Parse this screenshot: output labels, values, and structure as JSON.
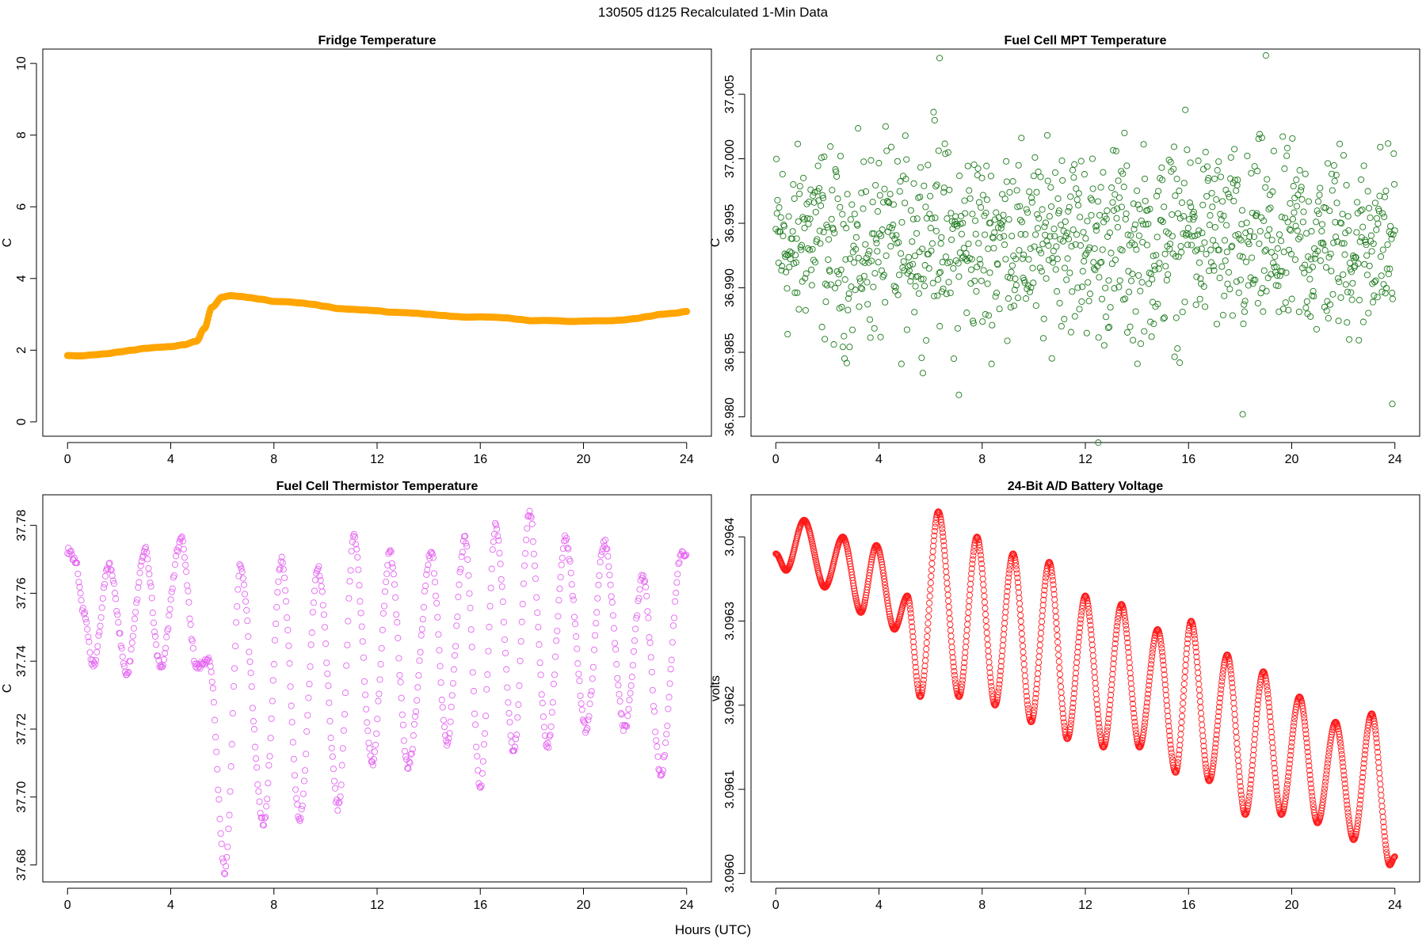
{
  "page": {
    "title": "130505   d125   Recalculated 1-Min Data",
    "xlabel": "Hours (UTC)"
  },
  "chart_data": [
    {
      "type": "line",
      "title": "Fridge Temperature",
      "xlabel": "Hours (UTC)",
      "ylabel": "C",
      "color": "#FFA500",
      "xlim": [
        -0.96,
        24.96
      ],
      "ylim": [
        -0.4,
        10.4
      ],
      "xticks": [
        0,
        4,
        8,
        12,
        16,
        20,
        24
      ],
      "yticks": [
        0,
        2,
        4,
        6,
        8,
        10
      ],
      "ytick_labels": [
        "0",
        "2",
        "4",
        "6",
        "8",
        "10"
      ],
      "series": [
        {
          "name": "Fridge Temperature",
          "x": [
            0,
            0.5,
            1,
            1.5,
            2,
            2.5,
            3,
            3.5,
            4,
            4.5,
            5,
            5.3,
            5.6,
            6,
            6.3,
            6.7,
            7,
            7.5,
            8,
            8.5,
            9,
            9.5,
            10,
            10.5,
            11,
            11.5,
            12,
            12.5,
            13,
            13.5,
            14,
            14.5,
            15,
            15.5,
            16,
            16.5,
            17,
            17.5,
            18,
            18.5,
            19,
            19.5,
            20,
            20.5,
            21,
            21.5,
            22,
            22.5,
            23,
            23.5,
            24
          ],
          "y": [
            1.85,
            1.84,
            1.87,
            1.9,
            1.95,
            2.0,
            2.05,
            2.08,
            2.1,
            2.15,
            2.25,
            2.6,
            3.2,
            3.48,
            3.52,
            3.5,
            3.47,
            3.42,
            3.36,
            3.35,
            3.32,
            3.28,
            3.22,
            3.16,
            3.14,
            3.12,
            3.1,
            3.06,
            3.05,
            3.03,
            3.0,
            2.97,
            2.94,
            2.92,
            2.93,
            2.92,
            2.9,
            2.86,
            2.82,
            2.83,
            2.82,
            2.8,
            2.81,
            2.82,
            2.82,
            2.84,
            2.88,
            2.94,
            3.0,
            3.03,
            3.08
          ]
        }
      ]
    },
    {
      "type": "scatter",
      "title": "Fuel Cell MPT Temperature",
      "xlabel": "Hours (UTC)",
      "ylabel": "C",
      "color": "#1E7B1E",
      "xlim": [
        -0.96,
        24.96
      ],
      "ylim": [
        36.9785,
        37.0085
      ],
      "xticks": [
        0,
        4,
        8,
        12,
        16,
        20,
        24
      ],
      "yticks": [
        36.98,
        36.985,
        36.99,
        36.995,
        37.0,
        37.005
      ],
      "ytick_labels": [
        "36.980",
        "36.985",
        "36.990",
        "36.995",
        "37.000",
        "37.005"
      ],
      "series": [
        {
          "name": "Fuel Cell MPT Temperature",
          "x": [
            0.2,
            0.7,
            1.1,
            1.6,
            2.1,
            2.6,
            3.0,
            3.4,
            3.9,
            4.3,
            4.8,
            5.2,
            5.7,
            6.1,
            6.4,
            6.8,
            7.2,
            7.7,
            8.1,
            8.6,
            9.0,
            9.5,
            9.9,
            10.4,
            10.8,
            11.2,
            11.7,
            12.1,
            12.5,
            13.0,
            13.4,
            13.8,
            14.3,
            14.7,
            15.2,
            15.6,
            16.0,
            16.5,
            16.9,
            17.4,
            17.8,
            18.2,
            18.7,
            19.1,
            19.6,
            20.0,
            20.4,
            20.9,
            21.3,
            21.8,
            22.2,
            22.7,
            23.1,
            23.6,
            23.9
          ],
          "y": [
            36.995,
            36.989,
            36.998,
            36.996,
            36.992,
            36.99,
            36.988,
            36.993,
            36.991,
            36.995,
            36.99,
            36.997,
            36.994,
            37.001,
            36.997,
            36.99,
            36.993,
            36.995,
            36.992,
            36.994,
            36.998,
            36.992,
            36.994,
            36.99,
            36.996,
            36.999,
            36.993,
            36.995,
            36.991,
            36.994,
            36.997,
            36.989,
            36.993,
            36.99,
            36.996,
            36.992,
            36.999,
            36.994,
            36.997,
            36.991,
            36.993,
            36.989,
            36.995,
            36.992,
            36.99,
            36.994,
            36.996,
            36.991,
            36.993,
            36.995,
            36.992,
            36.99,
            36.997,
            36.993,
            36.994
          ]
        }
      ]
    },
    {
      "type": "scatter",
      "title": "Fuel Cell Thermistor Temperature",
      "xlabel": "Hours (UTC)",
      "ylabel": "C",
      "color": "#E566F2",
      "xlim": [
        -0.96,
        24.96
      ],
      "ylim": [
        37.675,
        37.789
      ],
      "xticks": [
        0,
        4,
        8,
        12,
        16,
        20,
        24
      ],
      "yticks": [
        37.68,
        37.7,
        37.72,
        37.74,
        37.76,
        37.78
      ],
      "ytick_labels": [
        "37.68",
        "37.70",
        "37.72",
        "37.74",
        "37.76",
        "37.78"
      ],
      "series": [
        {
          "name": "Fuel Cell Thermistor Temperature",
          "x": [
            0,
            0.3,
            0.6,
            1.0,
            1.6,
            2.3,
            3.0,
            3.6,
            4.4,
            5.0,
            5.5,
            6.1,
            6.7,
            7.6,
            8.3,
            9.0,
            9.7,
            10.5,
            11.1,
            11.8,
            12.5,
            13.2,
            14.1,
            14.7,
            15.4,
            16.0,
            16.6,
            17.3,
            17.9,
            18.6,
            19.3,
            20.1,
            20.8,
            21.6,
            22.3,
            23.0,
            23.8
          ],
          "y": [
            37.773,
            37.77,
            37.755,
            37.739,
            37.768,
            37.737,
            37.773,
            37.738,
            37.776,
            37.738,
            37.74,
            37.678,
            37.768,
            37.692,
            37.77,
            37.693,
            37.768,
            37.697,
            37.777,
            37.71,
            37.772,
            37.709,
            37.772,
            37.716,
            37.776,
            37.703,
            37.78,
            37.713,
            37.784,
            37.715,
            37.776,
            37.72,
            37.775,
            37.72,
            37.765,
            37.707,
            37.772
          ]
        }
      ]
    },
    {
      "type": "line",
      "title": "24-Bit A/D Battery Voltage",
      "xlabel": "Hours (UTC)",
      "ylabel": "volts",
      "color": "#FF1A1A",
      "xlim": [
        -0.96,
        24.96
      ],
      "ylim": [
        3.09599,
        3.09645
      ],
      "xticks": [
        0,
        4,
        8,
        12,
        16,
        20,
        24
      ],
      "yticks": [
        3.096,
        3.0961,
        3.0962,
        3.0963,
        3.0964
      ],
      "ytick_labels": [
        "3.0960",
        "3.0961",
        "3.0962",
        "3.0963",
        "3.0964"
      ],
      "series": [
        {
          "name": "24-Bit A/D Battery Voltage",
          "x": [
            0,
            0.4,
            1.1,
            1.9,
            2.6,
            3.3,
            3.9,
            4.6,
            5.1,
            5.6,
            6.3,
            7.1,
            7.8,
            8.5,
            9.2,
            9.9,
            10.6,
            11.3,
            12.0,
            12.7,
            13.4,
            14.1,
            14.8,
            15.5,
            16.1,
            16.8,
            17.5,
            18.2,
            18.9,
            19.6,
            20.3,
            21.0,
            21.7,
            22.4,
            23.1,
            23.8,
            24.0
          ],
          "y": [
            3.09638,
            3.09636,
            3.09642,
            3.09634,
            3.0964,
            3.09631,
            3.09639,
            3.09629,
            3.09633,
            3.09621,
            3.09643,
            3.09621,
            3.0964,
            3.0962,
            3.09638,
            3.09618,
            3.09637,
            3.09616,
            3.09633,
            3.09615,
            3.09632,
            3.09615,
            3.09629,
            3.09612,
            3.0963,
            3.09611,
            3.09626,
            3.09607,
            3.09624,
            3.09607,
            3.09621,
            3.09606,
            3.09618,
            3.09604,
            3.09619,
            3.09601,
            3.09602
          ]
        }
      ]
    }
  ]
}
